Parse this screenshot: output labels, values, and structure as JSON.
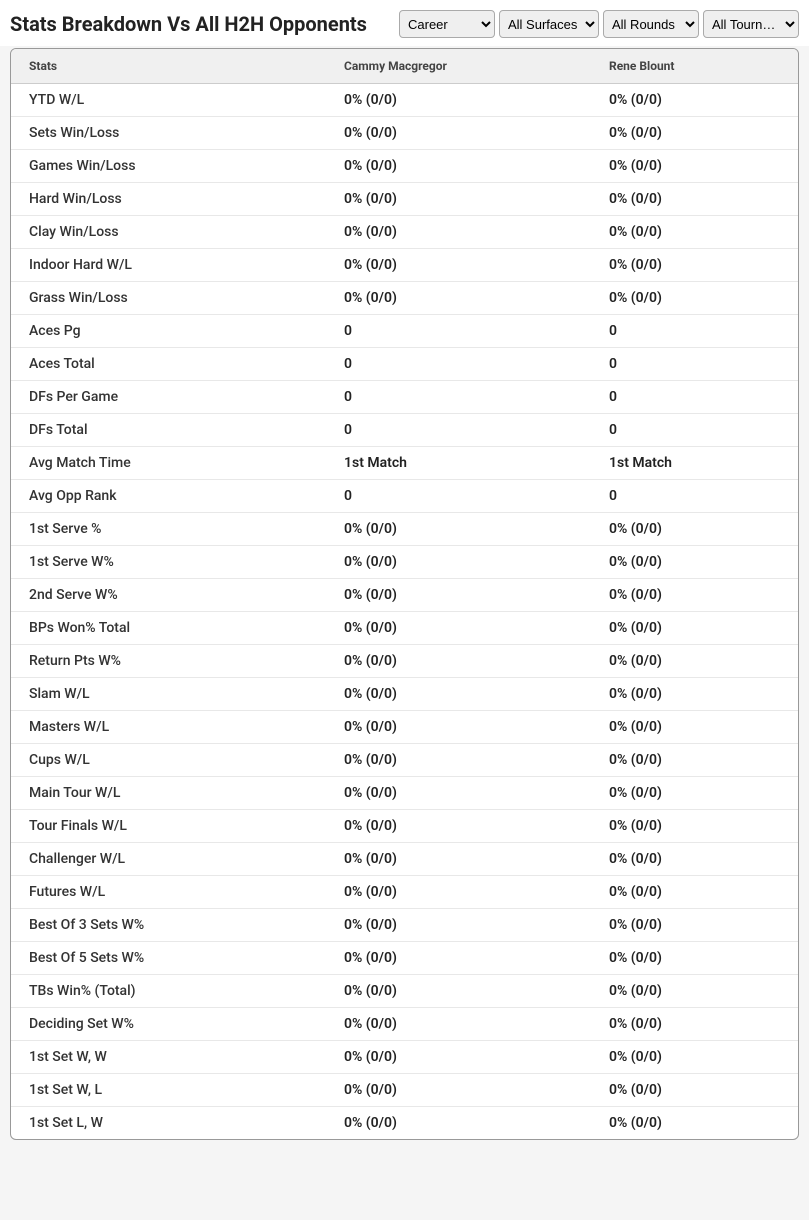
{
  "header": {
    "title": "Stats Breakdown Vs All H2H Opponents"
  },
  "filters": {
    "career": {
      "selected": "Career",
      "options": [
        "Career"
      ]
    },
    "surface": {
      "selected": "All Surfaces",
      "options": [
        "All Surfaces"
      ]
    },
    "round": {
      "selected": "All Rounds",
      "options": [
        "All Rounds"
      ]
    },
    "tourn": {
      "selected": "All Tourn…",
      "options": [
        "All Tourn…"
      ]
    }
  },
  "table": {
    "columns": [
      "Stats",
      "Cammy Macgregor",
      "Rene Blount"
    ],
    "rows": [
      [
        "YTD W/L",
        "0% (0/0)",
        "0% (0/0)"
      ],
      [
        "Sets Win/Loss",
        "0% (0/0)",
        "0% (0/0)"
      ],
      [
        "Games Win/Loss",
        "0% (0/0)",
        "0% (0/0)"
      ],
      [
        "Hard Win/Loss",
        "0% (0/0)",
        "0% (0/0)"
      ],
      [
        "Clay Win/Loss",
        "0% (0/0)",
        "0% (0/0)"
      ],
      [
        "Indoor Hard W/L",
        "0% (0/0)",
        "0% (0/0)"
      ],
      [
        "Grass Win/Loss",
        "0% (0/0)",
        "0% (0/0)"
      ],
      [
        "Aces Pg",
        "0",
        "0"
      ],
      [
        "Aces Total",
        "0",
        "0"
      ],
      [
        "DFs Per Game",
        "0",
        "0"
      ],
      [
        "DFs Total",
        "0",
        "0"
      ],
      [
        "Avg Match Time",
        "1st Match",
        "1st Match"
      ],
      [
        "Avg Opp Rank",
        "0",
        "0"
      ],
      [
        "1st Serve %",
        "0% (0/0)",
        "0% (0/0)"
      ],
      [
        "1st Serve W%",
        "0% (0/0)",
        "0% (0/0)"
      ],
      [
        "2nd Serve W%",
        "0% (0/0)",
        "0% (0/0)"
      ],
      [
        "BPs Won% Total",
        "0% (0/0)",
        "0% (0/0)"
      ],
      [
        "Return Pts W%",
        "0% (0/0)",
        "0% (0/0)"
      ],
      [
        "Slam W/L",
        "0% (0/0)",
        "0% (0/0)"
      ],
      [
        "Masters W/L",
        "0% (0/0)",
        "0% (0/0)"
      ],
      [
        "Cups W/L",
        "0% (0/0)",
        "0% (0/0)"
      ],
      [
        "Main Tour W/L",
        "0% (0/0)",
        "0% (0/0)"
      ],
      [
        "Tour Finals W/L",
        "0% (0/0)",
        "0% (0/0)"
      ],
      [
        "Challenger W/L",
        "0% (0/0)",
        "0% (0/0)"
      ],
      [
        "Futures W/L",
        "0% (0/0)",
        "0% (0/0)"
      ],
      [
        "Best Of 3 Sets W%",
        "0% (0/0)",
        "0% (0/0)"
      ],
      [
        "Best Of 5 Sets W%",
        "0% (0/0)",
        "0% (0/0)"
      ],
      [
        "TBs Win% (Total)",
        "0% (0/0)",
        "0% (0/0)"
      ],
      [
        "Deciding Set W%",
        "0% (0/0)",
        "0% (0/0)"
      ],
      [
        "1st Set W, W",
        "0% (0/0)",
        "0% (0/0)"
      ],
      [
        "1st Set W, L",
        "0% (0/0)",
        "0% (0/0)"
      ],
      [
        "1st Set L, W",
        "0% (0/0)",
        "0% (0/0)"
      ]
    ]
  },
  "styling": {
    "header_bg": "#ffffff",
    "table_header_bg": "#f0f0f0",
    "row_border": "#e8e8e8",
    "text_primary": "#222222",
    "text_secondary": "#444444"
  }
}
